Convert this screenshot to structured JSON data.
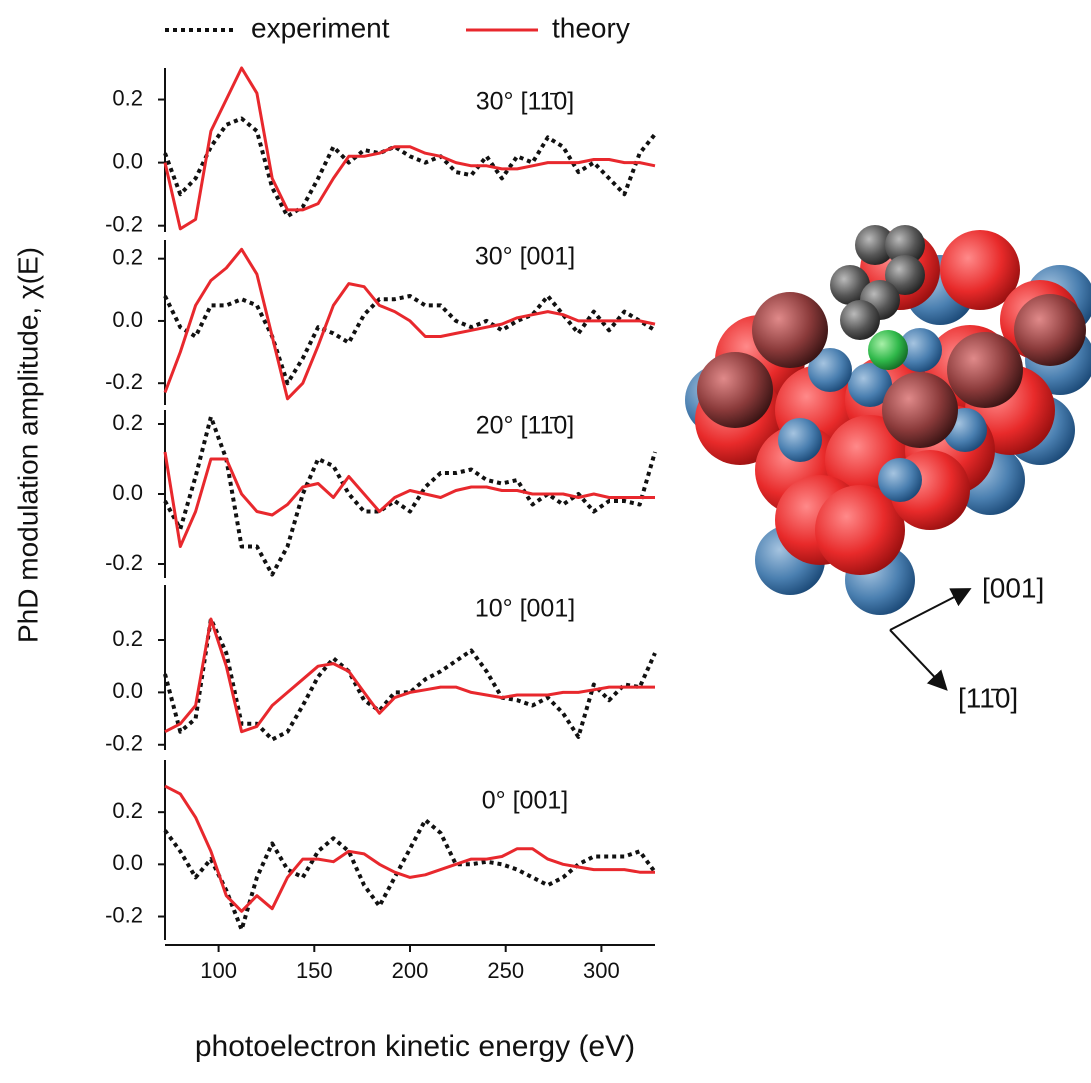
{
  "chart_data": [
    {
      "type": "line",
      "y_label": "PhD modulation amplitude, χ(E)",
      "annotation": "30° [11̄0]",
      "x": [
        72,
        80,
        88,
        96,
        104,
        112,
        120,
        128,
        136,
        144,
        152,
        160,
        168,
        176,
        184,
        192,
        200,
        208,
        216,
        224,
        232,
        240,
        248,
        256,
        264,
        272,
        280,
        288,
        296,
        304,
        312,
        320,
        328
      ],
      "xlim": [
        72,
        328
      ],
      "ylim": [
        -0.22,
        0.3
      ],
      "yticks": [
        -0.2,
        {
          "value": 0,
          "label": "0.0"
        },
        0.2
      ],
      "series": [
        {
          "name": "experiment",
          "color": "#111111",
          "style": "dotted",
          "values": [
            0.03,
            -0.1,
            -0.05,
            0.05,
            0.12,
            0.14,
            0.1,
            -0.08,
            -0.17,
            -0.14,
            -0.05,
            0.05,
            0.0,
            0.04,
            0.03,
            0.05,
            0.02,
            0.0,
            0.02,
            -0.03,
            -0.04,
            0.02,
            -0.05,
            0.02,
            0.0,
            0.08,
            0.05,
            -0.03,
            0.0,
            -0.05,
            -0.1,
            0.03,
            0.09
          ]
        },
        {
          "name": "theory",
          "color": "#e8282d",
          "style": "solid",
          "values": [
            0.0,
            -0.21,
            -0.18,
            0.1,
            0.2,
            0.3,
            0.22,
            -0.05,
            -0.15,
            -0.15,
            -0.13,
            -0.05,
            0.02,
            0.02,
            0.03,
            0.05,
            0.05,
            0.03,
            0.02,
            0.0,
            -0.01,
            -0.01,
            -0.02,
            -0.02,
            -0.01,
            0.0,
            0.0,
            0.0,
            0.01,
            0.01,
            0.0,
            0.0,
            -0.01
          ]
        }
      ]
    },
    {
      "type": "line",
      "annotation": "30° [001]",
      "x": [
        72,
        80,
        88,
        96,
        104,
        112,
        120,
        128,
        136,
        144,
        152,
        160,
        168,
        176,
        184,
        192,
        200,
        208,
        216,
        224,
        232,
        240,
        248,
        256,
        264,
        272,
        280,
        288,
        296,
        304,
        312,
        320,
        328
      ],
      "xlim": [
        72,
        328
      ],
      "ylim": [
        -0.27,
        0.26
      ],
      "yticks": [
        -0.2,
        {
          "value": 0,
          "label": "0.0"
        },
        0.2
      ],
      "series": [
        {
          "color": "#111111",
          "style": "dotted",
          "values": [
            0.08,
            -0.02,
            -0.05,
            0.05,
            0.05,
            0.07,
            0.05,
            -0.05,
            -0.2,
            -0.12,
            -0.02,
            -0.04,
            -0.07,
            0.02,
            0.07,
            0.07,
            0.08,
            0.05,
            0.05,
            0.0,
            -0.02,
            0.0,
            -0.03,
            0.0,
            0.02,
            0.08,
            0.02,
            -0.04,
            0.03,
            -0.03,
            0.03,
            0.0,
            -0.03
          ]
        },
        {
          "color": "#e8282d",
          "style": "solid",
          "values": [
            -0.23,
            -0.1,
            0.05,
            0.13,
            0.17,
            0.23,
            0.15,
            -0.05,
            -0.25,
            -0.2,
            -0.08,
            0.05,
            0.12,
            0.11,
            0.05,
            0.03,
            0.0,
            -0.05,
            -0.05,
            -0.04,
            -0.03,
            -0.02,
            -0.01,
            0.01,
            0.02,
            0.03,
            0.02,
            0.0,
            0.0,
            0.0,
            0.0,
            0.0,
            -0.01
          ]
        }
      ]
    },
    {
      "type": "line",
      "annotation": "20° [11̄0]",
      "x": [
        72,
        80,
        88,
        96,
        104,
        112,
        120,
        128,
        136,
        144,
        152,
        160,
        168,
        176,
        184,
        192,
        200,
        208,
        216,
        224,
        232,
        240,
        248,
        256,
        264,
        272,
        280,
        288,
        296,
        304,
        312,
        320,
        328
      ],
      "xlim": [
        72,
        328
      ],
      "ylim": [
        -0.24,
        0.24
      ],
      "yticks": [
        -0.2,
        {
          "value": 0,
          "label": "0.0"
        },
        0.2
      ],
      "series": [
        {
          "color": "#111111",
          "style": "dotted",
          "values": [
            -0.02,
            -0.1,
            0.05,
            0.22,
            0.1,
            -0.15,
            -0.15,
            -0.23,
            -0.15,
            0.0,
            0.1,
            0.08,
            0.0,
            -0.05,
            -0.05,
            -0.02,
            -0.05,
            0.02,
            0.06,
            0.06,
            0.07,
            0.04,
            0.03,
            0.04,
            -0.03,
            0.0,
            -0.03,
            0.0,
            -0.05,
            -0.02,
            -0.02,
            -0.03,
            0.12
          ]
        },
        {
          "color": "#e8282d",
          "style": "solid",
          "values": [
            0.12,
            -0.15,
            -0.05,
            0.1,
            0.1,
            0.0,
            -0.05,
            -0.06,
            -0.03,
            0.02,
            0.03,
            -0.01,
            0.05,
            0.0,
            -0.05,
            -0.01,
            0.01,
            0.0,
            -0.01,
            0.01,
            0.02,
            0.02,
            0.01,
            0.01,
            0.0,
            0.0,
            0.0,
            -0.01,
            0.0,
            -0.01,
            -0.01,
            -0.01,
            -0.01
          ]
        }
      ]
    },
    {
      "type": "line",
      "annotation": "10°  [001]",
      "x": [
        72,
        80,
        88,
        96,
        104,
        112,
        120,
        128,
        136,
        144,
        152,
        160,
        168,
        176,
        184,
        192,
        200,
        208,
        216,
        224,
        232,
        240,
        248,
        256,
        264,
        272,
        280,
        288,
        296,
        304,
        312,
        320,
        328
      ],
      "xlim": [
        72,
        328
      ],
      "ylim": [
        -0.22,
        0.41
      ],
      "yticks": [
        -0.2,
        {
          "value": 0,
          "label": "0.0"
        },
        0.2
      ],
      "series": [
        {
          "color": "#111111",
          "style": "dotted",
          "values": [
            0.07,
            -0.15,
            -0.1,
            0.28,
            0.15,
            -0.12,
            -0.12,
            -0.18,
            -0.15,
            -0.05,
            0.06,
            0.13,
            0.08,
            -0.03,
            -0.07,
            0.0,
            0.0,
            0.05,
            0.08,
            0.12,
            0.16,
            0.08,
            -0.02,
            -0.03,
            -0.05,
            -0.02,
            -0.08,
            -0.17,
            0.03,
            -0.03,
            0.03,
            0.02,
            0.15
          ]
        },
        {
          "color": "#e8282d",
          "style": "solid",
          "values": [
            -0.15,
            -0.12,
            -0.05,
            0.28,
            0.1,
            -0.15,
            -0.13,
            -0.05,
            0.0,
            0.05,
            0.1,
            0.11,
            0.08,
            0.0,
            -0.08,
            -0.02,
            0.0,
            0.01,
            0.02,
            0.02,
            0.0,
            -0.01,
            -0.02,
            -0.01,
            -0.01,
            -0.01,
            0.0,
            0.0,
            0.01,
            0.02,
            0.02,
            0.02,
            0.02
          ]
        }
      ]
    },
    {
      "type": "line",
      "annotation": "0° [001]",
      "x_label": "photoelectron kinetic energy (eV)",
      "x": [
        72,
        80,
        88,
        96,
        104,
        112,
        120,
        128,
        136,
        144,
        152,
        160,
        168,
        176,
        184,
        192,
        200,
        208,
        216,
        224,
        232,
        240,
        248,
        256,
        264,
        272,
        280,
        288,
        296,
        304,
        312,
        320,
        328
      ],
      "xlim": [
        72,
        328
      ],
      "xticks": [
        100,
        150,
        200,
        250,
        300
      ],
      "ylim": [
        -0.29,
        0.4
      ],
      "yticks": [
        -0.2,
        {
          "value": 0,
          "label": "0.0"
        },
        0.2
      ],
      "series": [
        {
          "color": "#111111",
          "style": "dotted",
          "values": [
            0.13,
            0.05,
            -0.05,
            0.02,
            -0.1,
            -0.25,
            -0.05,
            0.08,
            -0.02,
            -0.05,
            0.05,
            0.1,
            0.05,
            -0.08,
            -0.16,
            -0.05,
            0.06,
            0.17,
            0.12,
            0.0,
            0.0,
            0.01,
            0.0,
            -0.02,
            -0.05,
            -0.08,
            -0.05,
            0.0,
            0.03,
            0.03,
            0.03,
            0.05,
            -0.03
          ]
        },
        {
          "color": "#e8282d",
          "style": "solid",
          "values": [
            0.3,
            0.27,
            0.18,
            0.05,
            -0.12,
            -0.18,
            -0.12,
            -0.17,
            -0.05,
            0.02,
            0.02,
            0.01,
            0.05,
            0.04,
            0.0,
            -0.03,
            -0.05,
            -0.04,
            -0.02,
            0.0,
            0.02,
            0.02,
            0.03,
            0.06,
            0.06,
            0.02,
            0.0,
            -0.01,
            -0.02,
            -0.02,
            -0.02,
            -0.03,
            -0.03
          ]
        }
      ]
    }
  ],
  "model": {
    "directions": [
      "[001]",
      "[11̄0]"
    ]
  }
}
